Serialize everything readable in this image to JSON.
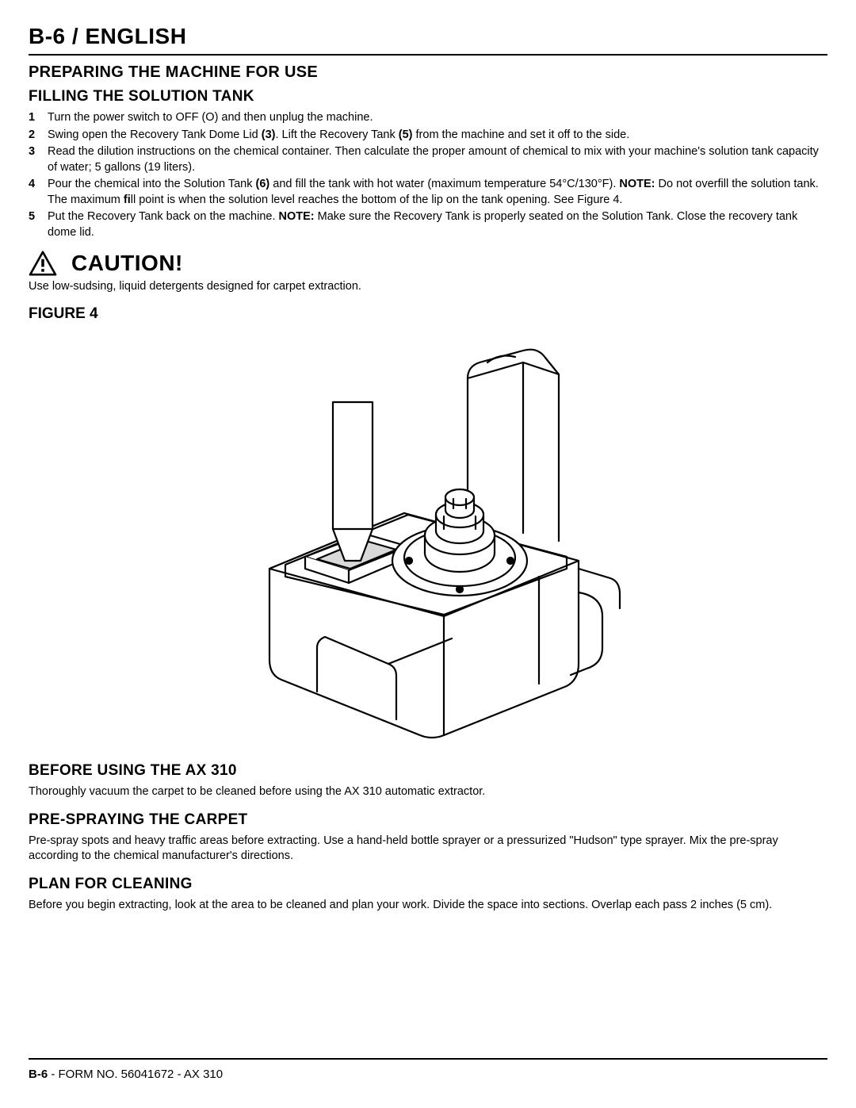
{
  "header": "B-6 / ENGLISH",
  "section1": {
    "title": "PREPARING THE MACHINE FOR USE",
    "subtitle": "FILLING THE SOLUTION TANK",
    "steps": [
      {
        "n": "1",
        "pre": "Turn the power switch to OFF (O) and then unplug the machine."
      },
      {
        "n": "2",
        "pre": "Swing open the Recovery Tank Dome Lid ",
        "b1": "(3)",
        "mid": ".  Lift the Recovery Tank ",
        "b2": "(5)",
        "post": " from the machine and set it off to the side."
      },
      {
        "n": "3",
        "pre": "Read the dilution instructions on the chemical container.  Then calculate the proper amount of chemical to mix with your machine's solution tank capacity of water; 5 gallons (19 liters)."
      },
      {
        "n": "4",
        "pre": "Pour the chemical into the Solution Tank ",
        "b1": "(6)",
        "mid": " and fill the tank with hot water (maximum temperature 54°C/130°F).  ",
        "b2": "NOTE:",
        "post": "  Do not overfill the solution tank.  The maximum ",
        "b3": "fi",
        "post2": "ll point is when the solution level reaches the bottom of the lip on the tank opening.  See Figure 4."
      },
      {
        "n": "5",
        "pre": "Put the Recovery Tank back on the machine.  ",
        "b1": "NOTE:",
        "post": "  Make sure the Recovery Tank is properly seated on the Solution Tank.  Close the recovery tank dome lid."
      }
    ]
  },
  "caution": {
    "label": "CAUTION!",
    "body": "Use low-sudsing, liquid detergents designed for carpet extraction."
  },
  "figure": {
    "label": "FIGURE 4"
  },
  "section_before": {
    "title": "BEFORE USING THE AX 310",
    "body": "Thoroughly vacuum the carpet to be cleaned before using the AX 310 automatic extractor."
  },
  "section_prespray": {
    "title": "PRE-SPRAYING THE CARPET",
    "body": "Pre-spray spots and heavy traffic areas before extracting.  Use a hand-held bottle sprayer or a pressurized \"Hudson\" type sprayer.  Mix the pre-spray according to the chemical manufacturer's directions."
  },
  "section_plan": {
    "title": "PLAN FOR CLEANING",
    "body": "Before you begin extracting, look at the area to be cleaned and plan your work.  Divide the space into sections.  Overlap each pass 2 inches (5 cm)."
  },
  "footer": {
    "page": "B-6",
    "rest": " - FORM NO. 56041672 - AX 310"
  },
  "style": {
    "text_color": "#000000",
    "background_color": "#ffffff",
    "rule_color": "#000000",
    "header_fontsize": 28,
    "section_fontsize": 20,
    "sub_fontsize": 19,
    "body_fontsize": 14.5,
    "figure_width": 560,
    "figure_height": 520
  }
}
